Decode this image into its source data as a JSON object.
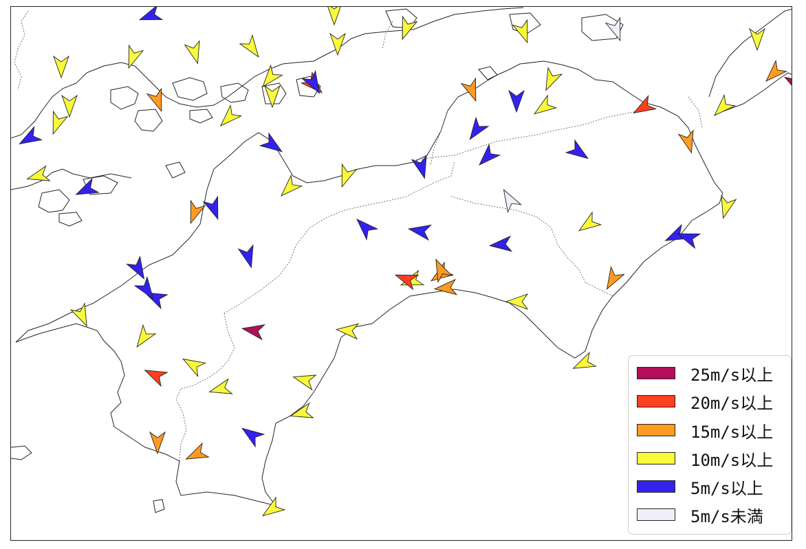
{
  "legend": {
    "items": [
      {
        "label": "25m/s以上",
        "color": "#b4105a"
      },
      {
        "label": "20m/s以上",
        "color": "#ff4020"
      },
      {
        "label": "15m/s以上",
        "color": "#ff9a22"
      },
      {
        "label": "10m/s以上",
        "color": "#fafa3a"
      },
      {
        "label": "5m/s以上",
        "color": "#3322ee"
      },
      {
        "label": "5m/s未満",
        "color": "#f0f0fb"
      }
    ]
  },
  "wind_stations": [
    {
      "level": 4,
      "dir": 250
    },
    {
      "level": 3,
      "dir": 180
    },
    {
      "level": 3,
      "dir": 200
    },
    {
      "level": 3,
      "dir": 160
    },
    {
      "level": 0,
      "dir": 160
    },
    {
      "level": 3,
      "dir": 180
    },
    {
      "level": 1,
      "dir": 135
    },
    {
      "level": 3,
      "dir": 180
    },
    {
      "level": 3,
      "dir": 200
    },
    {
      "level": 3,
      "dir": 165
    },
    {
      "level": 3,
      "dir": 145
    },
    {
      "level": 3,
      "dir": 180
    },
    {
      "level": 3,
      "dir": 200
    },
    {
      "level": 2,
      "dir": 160
    },
    {
      "level": 3,
      "dir": 220
    },
    {
      "level": 3,
      "dir": 180
    },
    {
      "level": 4,
      "dir": 240
    },
    {
      "level": 3,
      "dir": 225
    },
    {
      "level": 4,
      "dir": 150
    },
    {
      "level": 3,
      "dir": 180
    },
    {
      "level": 3,
      "dir": 200
    },
    {
      "level": 4,
      "dir": 125
    },
    {
      "level": 3,
      "dir": 205
    },
    {
      "level": 3,
      "dir": 235
    },
    {
      "level": 2,
      "dir": 160
    },
    {
      "level": 4,
      "dir": 180
    },
    {
      "level": 4,
      "dir": 215
    },
    {
      "level": 3,
      "dir": 225
    },
    {
      "level": 4,
      "dir": 160
    },
    {
      "level": 4,
      "dir": 225
    },
    {
      "level": 2,
      "dir": 200
    },
    {
      "level": 4,
      "dir": 165
    },
    {
      "level": 3,
      "dir": 200
    },
    {
      "level": 3,
      "dir": 255
    },
    {
      "level": 4,
      "dir": 245
    },
    {
      "level": 3,
      "dir": 225
    },
    {
      "level": 2,
      "dir": 165
    },
    {
      "level": 3,
      "dir": 195
    },
    {
      "level": 4,
      "dir": 125
    },
    {
      "level": 4,
      "dir": 165
    },
    {
      "level": 3,
      "dir": 235
    },
    {
      "level": 2,
      "dir": 225
    },
    {
      "level": 4,
      "dir": 245
    },
    {
      "level": 4,
      "dir": 150
    },
    {
      "level": 3,
      "dir": 155
    },
    {
      "level": 3,
      "dir": 250
    },
    {
      "level": 2,
      "dir": 235
    },
    {
      "level": 4,
      "dir": 315
    },
    {
      "level": 4,
      "dir": 280
    },
    {
      "level": 4,
      "dir": 265
    },
    {
      "level": 4,
      "dir": 295
    },
    {
      "level": 5,
      "dir": 280
    },
    {
      "level": 3,
      "dir": 275
    },
    {
      "level": 2,
      "dir": 265
    },
    {
      "level": 3,
      "dir": 270
    },
    {
      "level": 2,
      "dir": 210
    },
    {
      "level": 1,
      "dir": 240
    },
    {
      "level": 1,
      "dir": 295
    },
    {
      "level": 3,
      "dir": 300
    },
    {
      "level": 3,
      "dir": 285
    },
    {
      "level": 3,
      "dir": 255
    },
    {
      "level": 3,
      "dir": 215
    },
    {
      "level": 2,
      "dir": 180
    },
    {
      "level": 4,
      "dir": 305
    },
    {
      "level": 2,
      "dir": 245
    },
    {
      "level": 3,
      "dir": 235
    },
    {
      "level": 3,
      "dir": 255
    },
    {
      "level": 0,
      "dir": 330
    },
    {
      "level": 3,
      "dir": 245
    },
    {
      "level": 5,
      "dir": 300
    },
    {
      "level": 4,
      "dir": 290
    },
    {
      "level": 4,
      "dir": 145
    },
    {
      "level": 2,
      "dir": 335
    },
    {
      "level": 1,
      "dir": 290
    }
  ]
}
